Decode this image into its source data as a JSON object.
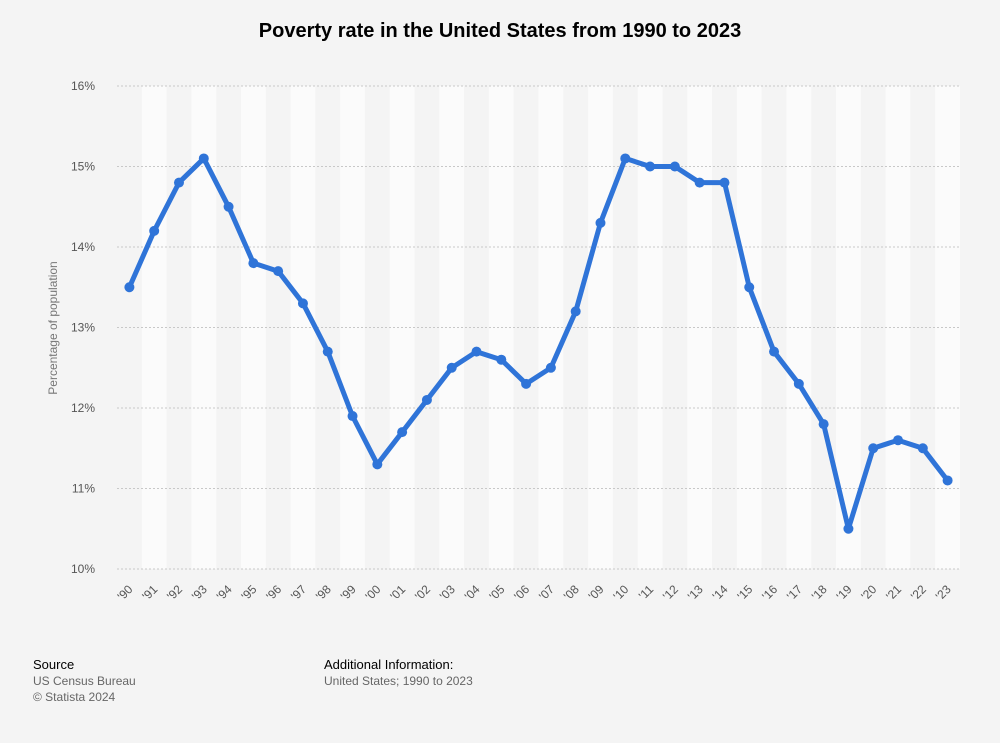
{
  "chart_data": {
    "type": "line",
    "title": "Poverty rate in the United States from 1990 to 2023",
    "ylabel": "Percentage of population",
    "xlabel": "",
    "ylim": [
      10,
      16
    ],
    "yticks": [
      "10%",
      "11%",
      "12%",
      "13%",
      "14%",
      "15%",
      "16%"
    ],
    "categories": [
      "'90",
      "'91",
      "'92",
      "'93",
      "'94",
      "'95",
      "'96",
      "'97",
      "'98",
      "'99",
      "'00",
      "'01",
      "'02",
      "'03",
      "'04",
      "'05",
      "'06",
      "'07",
      "'08",
      "'09",
      "'10",
      "'11",
      "'12",
      "'13",
      "'14",
      "'15",
      "'16",
      "'17",
      "'18",
      "'19",
      "'20",
      "'21",
      "'22",
      "'23"
    ],
    "series": [
      {
        "name": "Poverty rate",
        "values": [
          13.5,
          14.2,
          14.8,
          15.1,
          14.5,
          13.8,
          13.7,
          13.3,
          12.7,
          11.9,
          11.3,
          11.7,
          12.1,
          12.5,
          12.7,
          12.6,
          12.3,
          12.5,
          13.2,
          14.3,
          15.1,
          15.0,
          15.0,
          14.8,
          14.8,
          13.5,
          12.7,
          12.3,
          11.8,
          10.5,
          11.5,
          11.6,
          11.5,
          11.1
        ]
      }
    ],
    "line_color": "#2f74d8",
    "grid": true
  },
  "footer": {
    "source_heading": "Source",
    "source_text": "US Census Bureau",
    "copyright": "© Statista 2024",
    "info_heading": "Additional Information:",
    "info_text": "United States; 1990 to 2023"
  }
}
